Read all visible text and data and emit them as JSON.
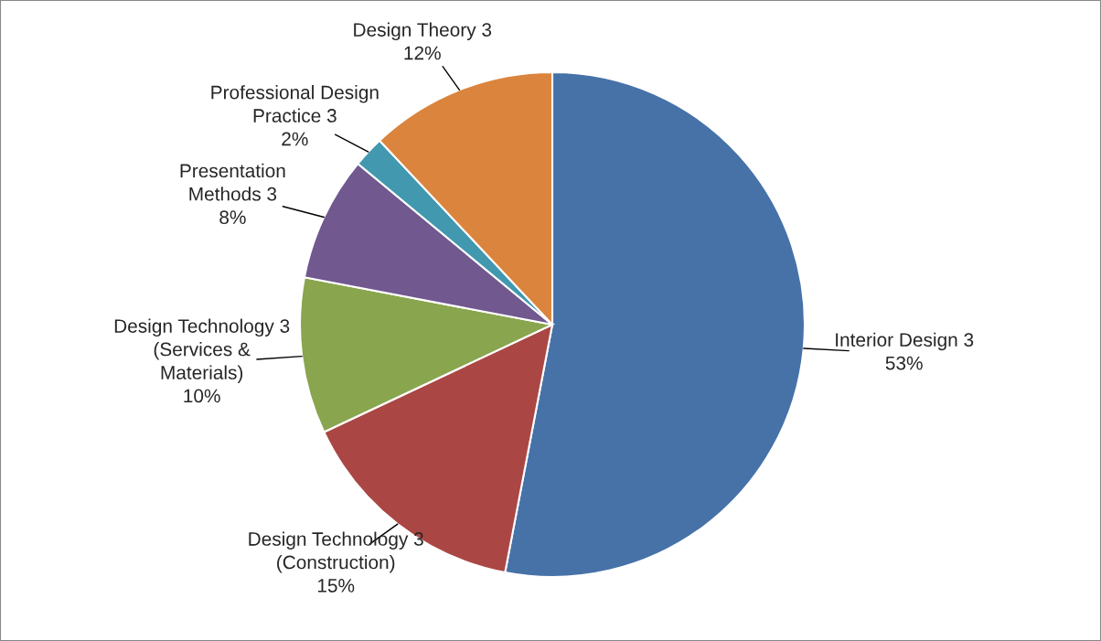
{
  "chart_data": {
    "type": "pie",
    "categories": [
      "Interior Design 3",
      "Design Technology 3\n(Construction)",
      "Design Technology 3\n(Services &\nMaterials)",
      "Presentation\nMethods 3",
      "Professional Design\nPractice 3",
      "Design Theory 3"
    ],
    "values": [
      53,
      15,
      10,
      8,
      2,
      12
    ],
    "value_labels": [
      "53%",
      "15%",
      "10%",
      "8%",
      "2%",
      "12%"
    ],
    "colors": [
      "#4672a8",
      "#aa4744",
      "#89a54e",
      "#71588f",
      "#4198af",
      "#db843d"
    ],
    "legend": false
  }
}
